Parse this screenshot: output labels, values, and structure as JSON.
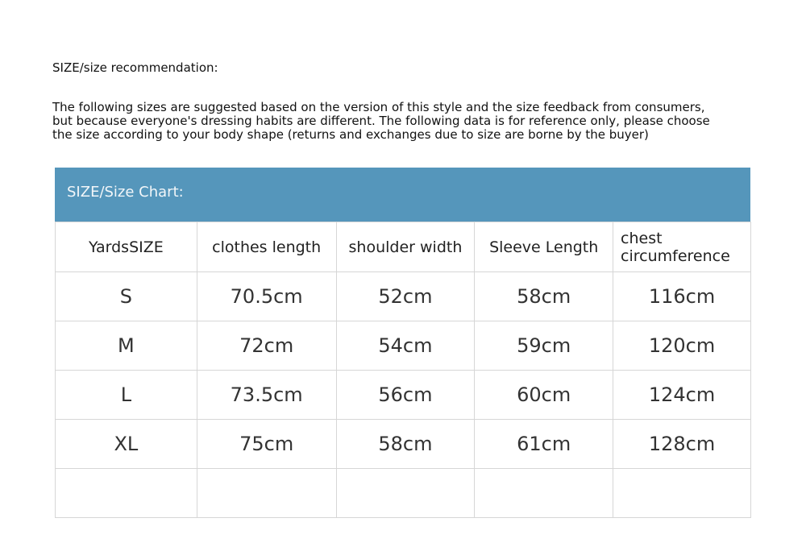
{
  "title": "SIZE/size recommendation:",
  "intro_lines": [
    "The following sizes are suggested based on the version of this style and the size feedback from consumers,",
    "but because everyone's dressing habits are different. The following data is for reference only, please choose",
    "the size according to your body shape (returns and exchanges due to size are borne by the buyer)"
  ],
  "table": {
    "caption": "SIZE/Size Chart:",
    "header_color": "#5596bb",
    "columns": [
      "YardsSIZE",
      "clothes length",
      "shoulder width",
      "Sleeve Length",
      "chest circumference"
    ],
    "rows": [
      [
        "S",
        "70.5cm",
        "52cm",
        "58cm",
        "116cm"
      ],
      [
        "M",
        "72cm",
        "54cm",
        "59cm",
        "120cm"
      ],
      [
        "L",
        "73.5cm",
        "56cm",
        "60cm",
        "124cm"
      ],
      [
        "XL",
        "75cm",
        "58cm",
        "61cm",
        "128cm"
      ],
      [
        "",
        "",
        "",
        "",
        ""
      ]
    ]
  }
}
